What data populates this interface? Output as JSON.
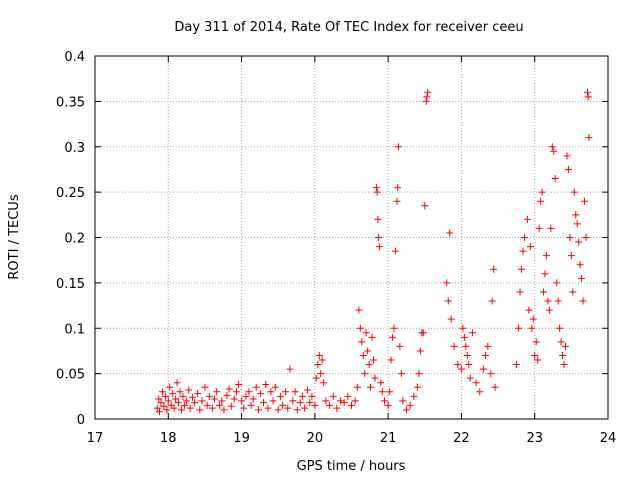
{
  "chart_data": {
    "type": "scatter",
    "title": "Day 311 of 2014, Rate Of TEC Index for receiver ceeu",
    "xlabel": "GPS time / hours",
    "ylabel": "ROTI / TECUs",
    "xlim": [
      17,
      24
    ],
    "ylim": [
      0,
      0.4
    ],
    "xticks": [
      "17",
      "18",
      "19",
      "20",
      "21",
      "22",
      "23",
      "24"
    ],
    "yticks": [
      "0",
      "0.05",
      "0.1",
      "0.15",
      "0.2",
      "0.25",
      "0.3",
      "0.35",
      "0.4"
    ],
    "grid": true,
    "marker": "+",
    "color": "#ff0000",
    "series": [
      {
        "name": "ROTI",
        "points": [
          [
            17.85,
            0.012
          ],
          [
            17.87,
            0.022
          ],
          [
            17.88,
            0.008
          ],
          [
            17.9,
            0.018
          ],
          [
            17.92,
            0.03
          ],
          [
            17.94,
            0.014
          ],
          [
            17.96,
            0.025
          ],
          [
            17.98,
            0.01
          ],
          [
            18.0,
            0.02
          ],
          [
            18.02,
            0.035
          ],
          [
            18.04,
            0.015
          ],
          [
            18.06,
            0.028
          ],
          [
            18.08,
            0.012
          ],
          [
            18.1,
            0.022
          ],
          [
            18.12,
            0.04
          ],
          [
            18.14,
            0.018
          ],
          [
            18.16,
            0.03
          ],
          [
            18.18,
            0.01
          ],
          [
            18.2,
            0.025
          ],
          [
            18.22,
            0.015
          ],
          [
            18.25,
            0.02
          ],
          [
            18.28,
            0.032
          ],
          [
            18.3,
            0.012
          ],
          [
            18.33,
            0.024
          ],
          [
            18.36,
            0.018
          ],
          [
            18.4,
            0.028
          ],
          [
            18.43,
            0.01
          ],
          [
            18.46,
            0.02
          ],
          [
            18.5,
            0.035
          ],
          [
            18.53,
            0.015
          ],
          [
            18.56,
            0.025
          ],
          [
            18.6,
            0.012
          ],
          [
            18.63,
            0.022
          ],
          [
            18.66,
            0.03
          ],
          [
            18.7,
            0.015
          ],
          [
            18.73,
            0.02
          ],
          [
            18.76,
            0.01
          ],
          [
            18.8,
            0.026
          ],
          [
            18.83,
            0.033
          ],
          [
            18.86,
            0.014
          ],
          [
            18.9,
            0.022
          ],
          [
            18.93,
            0.03
          ],
          [
            18.96,
            0.038
          ],
          [
            19.0,
            0.02
          ],
          [
            19.03,
            0.012
          ],
          [
            19.06,
            0.025
          ],
          [
            19.1,
            0.03
          ],
          [
            19.13,
            0.015
          ],
          [
            19.16,
            0.022
          ],
          [
            19.2,
            0.035
          ],
          [
            19.23,
            0.01
          ],
          [
            19.26,
            0.028
          ],
          [
            19.3,
            0.018
          ],
          [
            19.33,
            0.038
          ],
          [
            19.36,
            0.012
          ],
          [
            19.4,
            0.03
          ],
          [
            19.43,
            0.02
          ],
          [
            19.46,
            0.035
          ],
          [
            19.5,
            0.01
          ],
          [
            19.53,
            0.025
          ],
          [
            19.56,
            0.015
          ],
          [
            19.6,
            0.03
          ],
          [
            19.63,
            0.012
          ],
          [
            19.66,
            0.055
          ],
          [
            19.7,
            0.02
          ],
          [
            19.73,
            0.03
          ],
          [
            19.76,
            0.01
          ],
          [
            19.8,
            0.018
          ],
          [
            19.83,
            0.025
          ],
          [
            19.86,
            0.012
          ],
          [
            19.9,
            0.032
          ],
          [
            19.93,
            0.018
          ],
          [
            19.96,
            0.025
          ],
          [
            20.0,
            0.015
          ],
          [
            20.02,
            0.045
          ],
          [
            20.04,
            0.06
          ],
          [
            20.06,
            0.07
          ],
          [
            20.08,
            0.05
          ],
          [
            20.1,
            0.065
          ],
          [
            20.12,
            0.04
          ],
          [
            20.15,
            0.02
          ],
          [
            20.2,
            0.015
          ],
          [
            20.25,
            0.025
          ],
          [
            20.3,
            0.012
          ],
          [
            20.35,
            0.02
          ],
          [
            20.4,
            0.018
          ],
          [
            20.45,
            0.025
          ],
          [
            20.5,
            0.015
          ],
          [
            20.55,
            0.02
          ],
          [
            20.58,
            0.035
          ],
          [
            20.6,
            0.12
          ],
          [
            20.62,
            0.1
          ],
          [
            20.64,
            0.085
          ],
          [
            20.66,
            0.07
          ],
          [
            20.68,
            0.05
          ],
          [
            20.7,
            0.095
          ],
          [
            20.72,
            0.075
          ],
          [
            20.74,
            0.06
          ],
          [
            20.76,
            0.035
          ],
          [
            20.78,
            0.09
          ],
          [
            20.8,
            0.065
          ],
          [
            20.82,
            0.045
          ],
          [
            20.84,
            0.255
          ],
          [
            20.85,
            0.25
          ],
          [
            20.86,
            0.22
          ],
          [
            20.87,
            0.2
          ],
          [
            20.88,
            0.19
          ],
          [
            20.9,
            0.04
          ],
          [
            20.92,
            0.03
          ],
          [
            20.95,
            0.02
          ],
          [
            21.0,
            0.015
          ],
          [
            21.02,
            0.03
          ],
          [
            21.04,
            0.065
          ],
          [
            21.06,
            0.09
          ],
          [
            21.08,
            0.1
          ],
          [
            21.1,
            0.185
          ],
          [
            21.12,
            0.24
          ],
          [
            21.13,
            0.255
          ],
          [
            21.14,
            0.3
          ],
          [
            21.16,
            0.08
          ],
          [
            21.18,
            0.05
          ],
          [
            21.2,
            0.02
          ],
          [
            21.25,
            0.01
          ],
          [
            21.3,
            0.015
          ],
          [
            21.35,
            0.025
          ],
          [
            21.4,
            0.035
          ],
          [
            21.42,
            0.05
          ],
          [
            21.44,
            0.075
          ],
          [
            21.46,
            0.095
          ],
          [
            21.48,
            0.095
          ],
          [
            21.5,
            0.235
          ],
          [
            21.52,
            0.35
          ],
          [
            21.53,
            0.355
          ],
          [
            21.54,
            0.36
          ],
          [
            21.8,
            0.15
          ],
          [
            21.82,
            0.13
          ],
          [
            21.84,
            0.205
          ],
          [
            21.86,
            0.11
          ],
          [
            21.9,
            0.08
          ],
          [
            21.95,
            0.06
          ],
          [
            22.0,
            0.055
          ],
          [
            22.02,
            0.1
          ],
          [
            22.04,
            0.09
          ],
          [
            22.06,
            0.08
          ],
          [
            22.08,
            0.07
          ],
          [
            22.1,
            0.06
          ],
          [
            22.12,
            0.045
          ],
          [
            22.15,
            0.095
          ],
          [
            22.2,
            0.04
          ],
          [
            22.25,
            0.03
          ],
          [
            22.3,
            0.055
          ],
          [
            22.33,
            0.07
          ],
          [
            22.36,
            0.08
          ],
          [
            22.4,
            0.05
          ],
          [
            22.42,
            0.13
          ],
          [
            22.44,
            0.165
          ],
          [
            22.46,
            0.035
          ],
          [
            22.75,
            0.06
          ],
          [
            22.78,
            0.1
          ],
          [
            22.8,
            0.14
          ],
          [
            22.82,
            0.165
          ],
          [
            22.84,
            0.185
          ],
          [
            22.86,
            0.2
          ],
          [
            22.9,
            0.22
          ],
          [
            22.92,
            0.12
          ],
          [
            22.94,
            0.19
          ],
          [
            22.96,
            0.1
          ],
          [
            22.98,
            0.11
          ],
          [
            23.0,
            0.07
          ],
          [
            23.02,
            0.085
          ],
          [
            23.04,
            0.065
          ],
          [
            23.06,
            0.21
          ],
          [
            23.08,
            0.24
          ],
          [
            23.1,
            0.25
          ],
          [
            23.12,
            0.14
          ],
          [
            23.14,
            0.16
          ],
          [
            23.16,
            0.18
          ],
          [
            23.18,
            0.13
          ],
          [
            23.2,
            0.12
          ],
          [
            23.22,
            0.21
          ],
          [
            23.24,
            0.3
          ],
          [
            23.26,
            0.295
          ],
          [
            23.28,
            0.265
          ],
          [
            23.3,
            0.15
          ],
          [
            23.32,
            0.13
          ],
          [
            23.34,
            0.1
          ],
          [
            23.36,
            0.085
          ],
          [
            23.38,
            0.07
          ],
          [
            23.4,
            0.06
          ],
          [
            23.42,
            0.08
          ],
          [
            23.44,
            0.29
          ],
          [
            23.46,
            0.275
          ],
          [
            23.48,
            0.2
          ],
          [
            23.5,
            0.18
          ],
          [
            23.52,
            0.14
          ],
          [
            23.54,
            0.25
          ],
          [
            23.56,
            0.225
          ],
          [
            23.58,
            0.215
          ],
          [
            23.6,
            0.195
          ],
          [
            23.62,
            0.17
          ],
          [
            23.64,
            0.155
          ],
          [
            23.66,
            0.13
          ],
          [
            23.68,
            0.24
          ],
          [
            23.7,
            0.2
          ],
          [
            23.72,
            0.36
          ],
          [
            23.73,
            0.355
          ],
          [
            23.74,
            0.31
          ]
        ]
      }
    ]
  }
}
